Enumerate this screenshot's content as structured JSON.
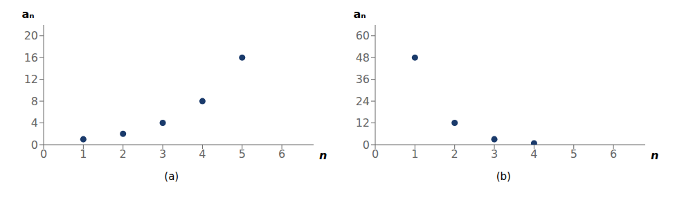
{
  "chart_data": [
    {
      "type": "scatter",
      "title": "(a)",
      "x_label": "n",
      "y_label": "aₙ",
      "x": [
        1,
        2,
        3,
        4,
        5
      ],
      "values": [
        1,
        2,
        4,
        8,
        16
      ],
      "color": "#1a3a6b",
      "xlim": [
        0,
        6.8
      ],
      "ylim": [
        0,
        22
      ],
      "xticks": [
        0,
        1,
        2,
        3,
        4,
        5,
        6
      ],
      "yticks": [
        0,
        4,
        8,
        12,
        16,
        20
      ],
      "grid": false
    },
    {
      "type": "scatter",
      "title": "(b)",
      "x_label": "n",
      "y_label": "aₙ",
      "x": [
        1,
        2,
        3,
        4
      ],
      "values": [
        48,
        12,
        3,
        0.75
      ],
      "color": "#1a3a6b",
      "xlim": [
        0,
        6.8
      ],
      "ylim": [
        0,
        66
      ],
      "xticks": [
        0,
        1,
        2,
        3,
        4,
        5,
        6
      ],
      "yticks": [
        0,
        12,
        24,
        36,
        48,
        60
      ],
      "grid": false
    }
  ]
}
